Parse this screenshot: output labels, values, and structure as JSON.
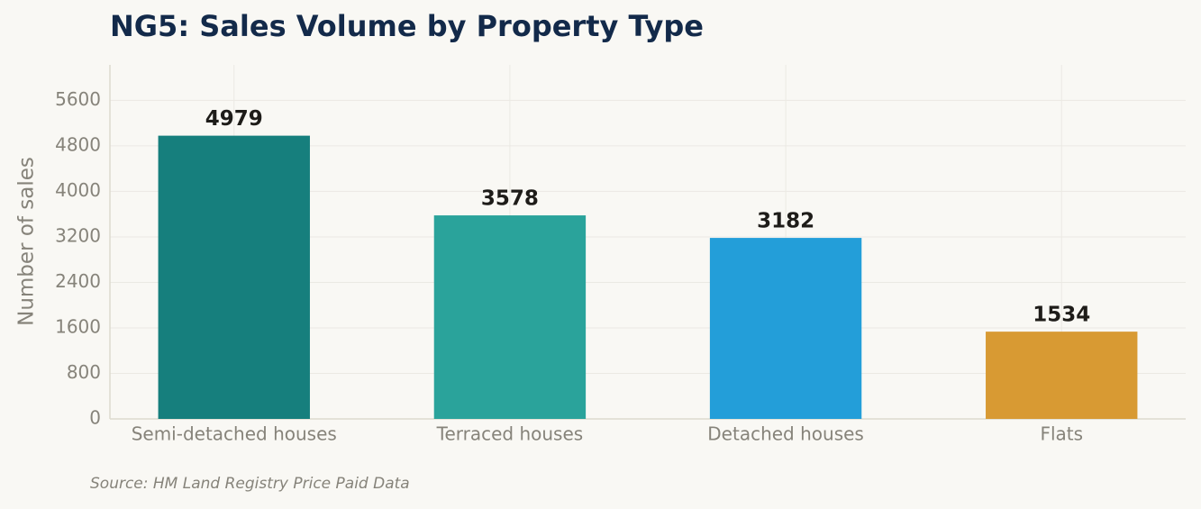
{
  "chart_data": {
    "type": "bar",
    "title": "NG5: Sales Volume by Property Type",
    "y_label": "Number of sales",
    "categories": [
      "Semi-detached houses",
      "Terraced houses",
      "Detached houses",
      "Flats"
    ],
    "values": [
      4979,
      3578,
      3182,
      1534
    ],
    "colors": [
      "#167f7d",
      "#2aa39b",
      "#239ed9",
      "#d89a33"
    ],
    "ylim": [
      0,
      6224
    ],
    "yticks": [
      0,
      800,
      1600,
      2400,
      3200,
      4000,
      4800,
      5600
    ],
    "grid": true,
    "source": "Source: HM Land Registry Price Paid Data"
  }
}
